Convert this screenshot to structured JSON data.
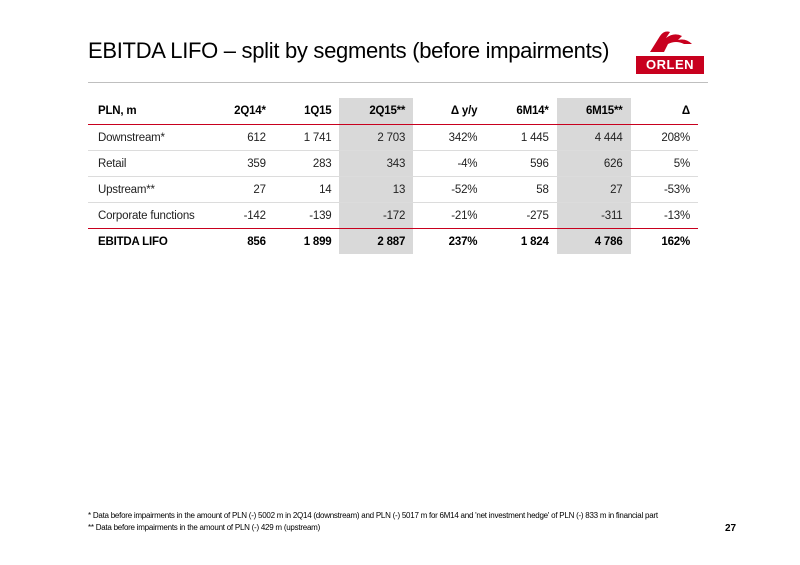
{
  "slide": {
    "title": "EBITDA LIFO – split by segments (before impairments)",
    "logo_text": "ORLEN",
    "page_number": "27"
  },
  "table": {
    "header": [
      "PLN, m",
      "2Q14*",
      "1Q15",
      "2Q15**",
      "Δ y/y",
      "6M14*",
      "6M15**",
      "Δ"
    ],
    "rows": [
      [
        "Downstream*",
        "612",
        "1 741",
        "2 703",
        "342%",
        "1 445",
        "4 444",
        "208%"
      ],
      [
        "Retail",
        "359",
        "283",
        "343",
        "-4%",
        "596",
        "626",
        "5%"
      ],
      [
        "Upstream**",
        "27",
        "14",
        "13",
        "-52%",
        "58",
        "27",
        "-53%"
      ],
      [
        "Corporate functions",
        "-142",
        "-139",
        "-172",
        "-21%",
        "-275",
        "-311",
        "-13%"
      ],
      [
        "EBITDA LIFO",
        "856",
        "1 899",
        "2 887",
        "237%",
        "1 824",
        "4 786",
        "162%"
      ]
    ]
  },
  "footnotes": [
    "*  Data before impairments in the amount of   PLN (-) 5002 m in 2Q14 (downstream) and PLN (-) 5017 m for 6M14 and 'net investment hedge' of PLN (-) 833 m in financial part",
    "** Data before impairments in the amount of PLN (-) 429 m (upstream)"
  ],
  "colors": {
    "brand_red": "#c8001e",
    "highlight_gray": "#d9d9d9"
  }
}
